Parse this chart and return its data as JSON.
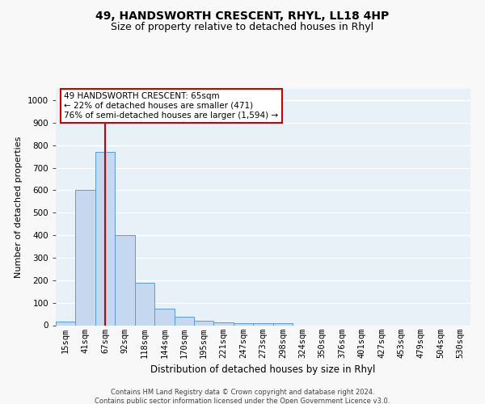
{
  "title1": "49, HANDSWORTH CRESCENT, RHYL, LL18 4HP",
  "title2": "Size of property relative to detached houses in Rhyl",
  "xlabel": "Distribution of detached houses by size in Rhyl",
  "ylabel": "Number of detached properties",
  "bar_labels": [
    "15sqm",
    "41sqm",
    "67sqm",
    "92sqm",
    "118sqm",
    "144sqm",
    "170sqm",
    "195sqm",
    "221sqm",
    "247sqm",
    "273sqm",
    "298sqm",
    "324sqm",
    "350sqm",
    "376sqm",
    "401sqm",
    "427sqm",
    "453sqm",
    "479sqm",
    "504sqm",
    "530sqm"
  ],
  "bar_values": [
    15,
    600,
    770,
    400,
    190,
    75,
    38,
    20,
    13,
    10,
    10,
    8,
    0,
    0,
    0,
    0,
    0,
    0,
    0,
    0,
    0
  ],
  "bar_color": "#c5d8f0",
  "bar_edge_color": "#5b9bd5",
  "bar_width": 1.0,
  "ylim": [
    0,
    1050
  ],
  "yticks": [
    0,
    100,
    200,
    300,
    400,
    500,
    600,
    700,
    800,
    900,
    1000
  ],
  "property_line_color": "#cc0000",
  "property_bar_label": "67sqm",
  "annotation_text": "49 HANDSWORTH CRESCENT: 65sqm\n← 22% of detached houses are smaller (471)\n76% of semi-detached houses are larger (1,594) →",
  "annotation_box_color": "#ffffff",
  "annotation_box_edge": "#cc0000",
  "footnote1": "Contains HM Land Registry data © Crown copyright and database right 2024.",
  "footnote2": "Contains public sector information licensed under the Open Government Licence v3.0.",
  "background_color": "#e8f0f8",
  "fig_background_color": "#f8f8f8",
  "grid_color": "#ffffff",
  "title1_fontsize": 10,
  "title2_fontsize": 9,
  "xlabel_fontsize": 8.5,
  "ylabel_fontsize": 8,
  "tick_fontsize": 7.5,
  "annotation_fontsize": 7.5,
  "footnote_fontsize": 6
}
